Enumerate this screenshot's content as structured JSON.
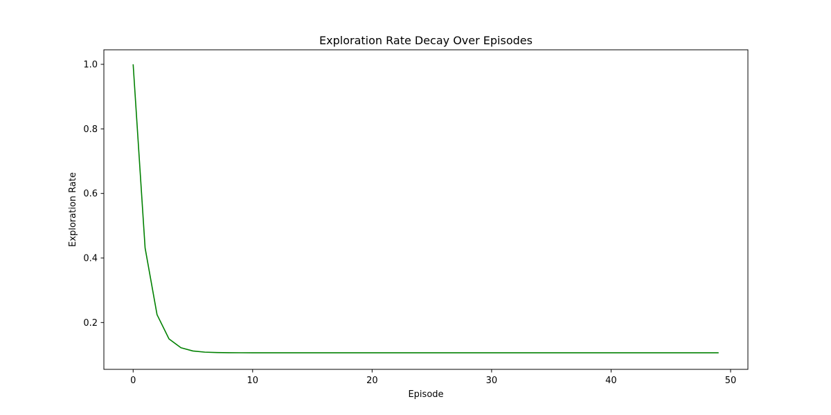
{
  "chart_data": {
    "type": "line",
    "title": "Exploration Rate Decay Over Episodes",
    "xlabel": "Episode",
    "ylabel": "Exploration Rate",
    "xlim": [
      -2.45,
      51.45
    ],
    "ylim": [
      0.055,
      1.045
    ],
    "xticks": [
      0,
      10,
      20,
      30,
      40,
      50
    ],
    "yticks": [
      0.2,
      0.4,
      0.6,
      0.8,
      1.0
    ],
    "xtick_labels": [
      "0",
      "10",
      "20",
      "30",
      "40",
      "50"
    ],
    "ytick_labels": [
      "0.2",
      "0.4",
      "0.6",
      "0.8",
      "1.0"
    ],
    "grid": false,
    "series": [
      {
        "color": "#008000",
        "x": [
          0,
          1,
          2,
          3,
          4,
          5,
          6,
          7,
          8,
          9,
          10,
          11,
          12,
          13,
          14,
          15,
          16,
          17,
          18,
          19,
          20,
          21,
          22,
          23,
          24,
          25,
          26,
          27,
          28,
          29,
          30,
          31,
          32,
          33,
          34,
          35,
          36,
          37,
          38,
          39,
          40,
          41,
          42,
          43,
          44,
          45,
          46,
          47,
          48,
          49
        ],
        "y": [
          1.0,
          0.4312,
          0.2244,
          0.1492,
          0.1219,
          0.1119,
          0.1083,
          0.107,
          0.1065,
          0.1064,
          0.1063,
          0.1063,
          0.1063,
          0.1063,
          0.1063,
          0.1063,
          0.1063,
          0.1063,
          0.1063,
          0.1063,
          0.1063,
          0.1063,
          0.1063,
          0.1063,
          0.1063,
          0.1063,
          0.1063,
          0.1063,
          0.1063,
          0.1063,
          0.1063,
          0.1063,
          0.1063,
          0.1063,
          0.1063,
          0.1063,
          0.1063,
          0.1063,
          0.1063,
          0.1063,
          0.1063,
          0.1063,
          0.1063,
          0.1063,
          0.1063,
          0.1063,
          0.1063,
          0.1063,
          0.1063,
          0.1063
        ]
      }
    ]
  }
}
